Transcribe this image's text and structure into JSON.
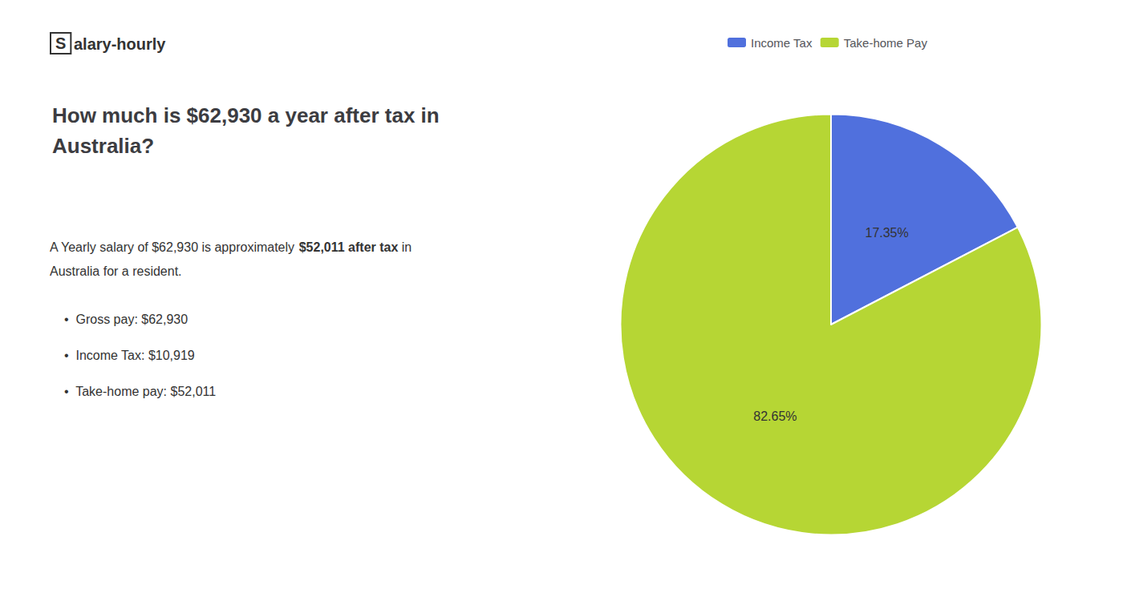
{
  "chart_data": {
    "type": "pie",
    "title": "How much is $62,930 a year after tax in\nAustralia?",
    "annotations": [
      "S",
      "alary-hourly",
      "A Yearly salary of $62,930 is approximately ",
      "$52,011 after tax",
      " in",
      "Australia for a resident.",
      "•  Gross pay: $62,930",
      "•  Income Tax: $10,919",
      "•  Take-home pay: $52,011"
    ],
    "categories": [
      "Income Tax",
      "Take-home Pay"
    ],
    "values": [
      17.35,
      82.65
    ],
    "value_labels": [
      "17.35%",
      "82.65%"
    ],
    "data_labels": true,
    "legend": "top"
  }
}
